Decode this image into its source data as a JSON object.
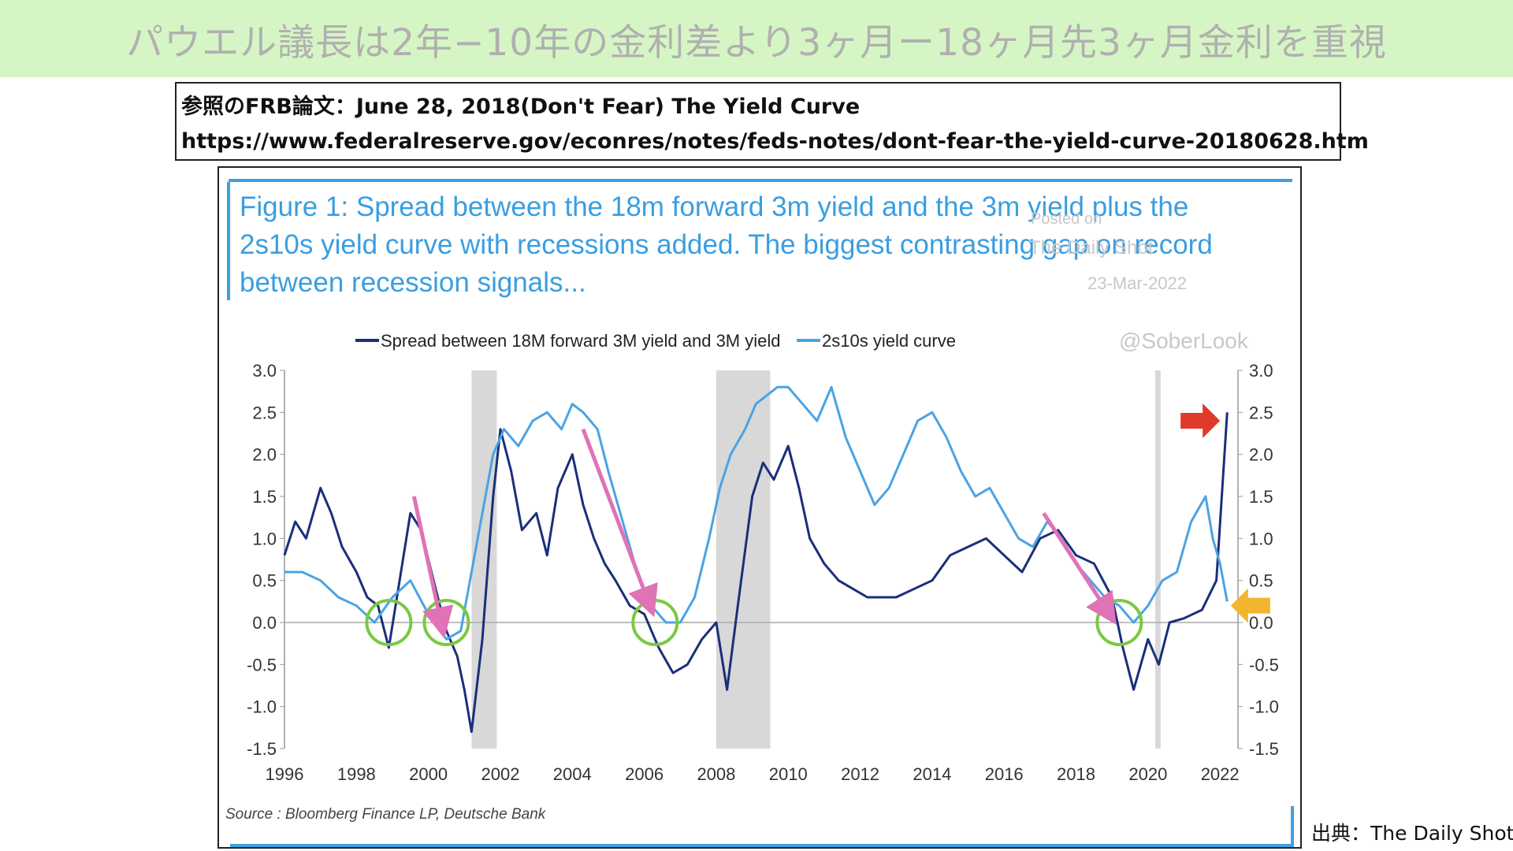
{
  "banner": {
    "title": "パウエル議長は2年−10年の金利差より3ヶ月ー18ヶ月先3ヶ月金利を重視"
  },
  "reference": {
    "line1": "参照のFRB論文：June 28, 2018(Don't Fear) The Yield Curve",
    "line2": "https://www.federalreserve.gov/econres/notes/feds-notes/dont-fear-the-yield-curve-20180628.htm"
  },
  "figure": {
    "title_line1": "Figure 1: Spread between the 18m forward 3m yield and the 3m yield plus the",
    "title_line2": "2s10s yield curve with recessions added. The biggest contrasting gap on record",
    "title_line3": "between recession signals...",
    "watermark": [
      "Posted on",
      "The Daily Shot",
      "23-Mar-2022",
      "@SoberLook"
    ],
    "source": "Source : Bloomberg Finance LP, Deutsche Bank"
  },
  "credit": "出典：The Daily Shot",
  "chart_data": {
    "type": "line",
    "title": "Figure 1: Spread between the 18m forward 3m yield and the 3m yield plus the 2s10s yield curve with recessions added. The biggest contrasting gap on record between recession signals...",
    "x_ticks": [
      "1996",
      "1998",
      "2000",
      "2002",
      "2004",
      "2006",
      "2008",
      "2010",
      "2012",
      "2014",
      "2016",
      "2018",
      "2020",
      "2022"
    ],
    "y_ticks": [
      "3.0",
      "2.5",
      "2.0",
      "1.5",
      "1.0",
      "0.5",
      "0.0",
      "-0.5",
      "-1.0",
      "-1.5"
    ],
    "ylim": [
      -1.5,
      3.0
    ],
    "xlim": [
      1996,
      2022.5
    ],
    "grid": false,
    "legend_placement": "top",
    "recessions": [
      [
        2001.2,
        2001.9
      ],
      [
        2008.0,
        2009.5
      ],
      [
        2020.2,
        2020.35
      ]
    ],
    "series": [
      {
        "name": "Spread between 18M forward 3M yield and 3M yield",
        "color": "#1a2f7a",
        "x": [
          1996.0,
          1996.3,
          1996.6,
          1997.0,
          1997.3,
          1997.6,
          1998.0,
          1998.3,
          1998.6,
          1998.9,
          1999.2,
          1999.5,
          1999.8,
          2000.2,
          2000.5,
          2000.8,
          2001.0,
          2001.2,
          2001.5,
          2001.8,
          2002.0,
          2002.3,
          2002.6,
          2003.0,
          2003.3,
          2003.6,
          2004.0,
          2004.3,
          2004.6,
          2004.9,
          2005.2,
          2005.6,
          2006.0,
          2006.4,
          2006.8,
          2007.2,
          2007.6,
          2008.0,
          2008.3,
          2008.6,
          2009.0,
          2009.3,
          2009.6,
          2010.0,
          2010.3,
          2010.6,
          2011.0,
          2011.4,
          2011.8,
          2012.2,
          2012.6,
          2013.0,
          2013.5,
          2014.0,
          2014.5,
          2015.0,
          2015.5,
          2016.0,
          2016.5,
          2017.0,
          2017.5,
          2018.0,
          2018.5,
          2019.0,
          2019.3,
          2019.6,
          2020.0,
          2020.3,
          2020.6,
          2021.0,
          2021.5,
          2021.9,
          2022.2
        ],
        "values": [
          0.8,
          1.2,
          1.0,
          1.6,
          1.3,
          0.9,
          0.6,
          0.3,
          0.2,
          -0.3,
          0.5,
          1.3,
          1.1,
          0.4,
          -0.1,
          -0.4,
          -0.8,
          -1.3,
          -0.2,
          1.5,
          2.3,
          1.8,
          1.1,
          1.3,
          0.8,
          1.6,
          2.0,
          1.4,
          1.0,
          0.7,
          0.5,
          0.2,
          0.1,
          -0.3,
          -0.6,
          -0.5,
          -0.2,
          0.0,
          -0.8,
          0.2,
          1.5,
          1.9,
          1.7,
          2.1,
          1.6,
          1.0,
          0.7,
          0.5,
          0.4,
          0.3,
          0.3,
          0.3,
          0.4,
          0.5,
          0.8,
          0.9,
          1.0,
          0.8,
          0.6,
          1.0,
          1.1,
          0.8,
          0.7,
          0.3,
          -0.3,
          -0.8,
          -0.2,
          -0.5,
          0.0,
          0.05,
          0.15,
          0.5,
          2.5
        ]
      },
      {
        "name": "2s10s yield curve",
        "color": "#4ba3e3",
        "x": [
          1996.0,
          1996.5,
          1997.0,
          1997.5,
          1998.0,
          1998.5,
          1999.0,
          1999.5,
          2000.0,
          2000.5,
          2000.9,
          2001.2,
          2001.5,
          2001.8,
          2002.1,
          2002.5,
          2002.9,
          2003.3,
          2003.7,
          2004.0,
          2004.3,
          2004.7,
          2005.0,
          2005.4,
          2005.8,
          2006.2,
          2006.6,
          2007.0,
          2007.4,
          2007.8,
          2008.1,
          2008.4,
          2008.8,
          2009.1,
          2009.4,
          2009.7,
          2010.0,
          2010.4,
          2010.8,
          2011.2,
          2011.6,
          2012.0,
          2012.4,
          2012.8,
          2013.2,
          2013.6,
          2014.0,
          2014.4,
          2014.8,
          2015.2,
          2015.6,
          2016.0,
          2016.4,
          2016.8,
          2017.2,
          2017.6,
          2018.0,
          2018.4,
          2018.8,
          2019.2,
          2019.6,
          2020.0,
          2020.4,
          2020.8,
          2021.2,
          2021.6,
          2021.8,
          2022.0,
          2022.2
        ],
        "values": [
          0.6,
          0.6,
          0.5,
          0.3,
          0.2,
          0.0,
          0.3,
          0.5,
          0.1,
          -0.2,
          -0.1,
          0.6,
          1.3,
          2.0,
          2.3,
          2.1,
          2.4,
          2.5,
          2.3,
          2.6,
          2.5,
          2.3,
          1.8,
          1.2,
          0.6,
          0.2,
          0.0,
          0.0,
          0.3,
          1.0,
          1.6,
          2.0,
          2.3,
          2.6,
          2.7,
          2.8,
          2.8,
          2.6,
          2.4,
          2.8,
          2.2,
          1.8,
          1.4,
          1.6,
          2.0,
          2.4,
          2.5,
          2.2,
          1.8,
          1.5,
          1.6,
          1.3,
          1.0,
          0.9,
          1.2,
          1.0,
          0.7,
          0.5,
          0.3,
          0.2,
          0.0,
          0.2,
          0.5,
          0.6,
          1.2,
          1.5,
          1.0,
          0.7,
          0.25
        ]
      }
    ],
    "annotations": [
      {
        "type": "circle",
        "x": 1998.9,
        "y": 0.0,
        "color": "#7ac943"
      },
      {
        "type": "circle",
        "x": 2000.5,
        "y": 0.0,
        "color": "#7ac943"
      },
      {
        "type": "circle",
        "x": 2006.3,
        "y": 0.0,
        "color": "#7ac943"
      },
      {
        "type": "circle",
        "x": 2019.2,
        "y": 0.0,
        "color": "#7ac943"
      },
      {
        "type": "arrow",
        "x1": 1999.6,
        "y1": 1.5,
        "x2": 2000.4,
        "y2": -0.1,
        "color": "#e072b6"
      },
      {
        "type": "arrow",
        "x1": 2004.3,
        "y1": 2.3,
        "x2": 2006.2,
        "y2": 0.15,
        "color": "#e072b6"
      },
      {
        "type": "arrow",
        "x1": 2017.1,
        "y1": 1.3,
        "x2": 2019.0,
        "y2": 0.05,
        "color": "#e072b6"
      },
      {
        "type": "block-arrow",
        "x": 2022.0,
        "y": 2.4,
        "direction": "right",
        "color": "#e03a2a"
      },
      {
        "type": "block-arrow",
        "x": 2022.3,
        "y": 0.2,
        "direction": "left",
        "color": "#f2b52e"
      }
    ]
  }
}
